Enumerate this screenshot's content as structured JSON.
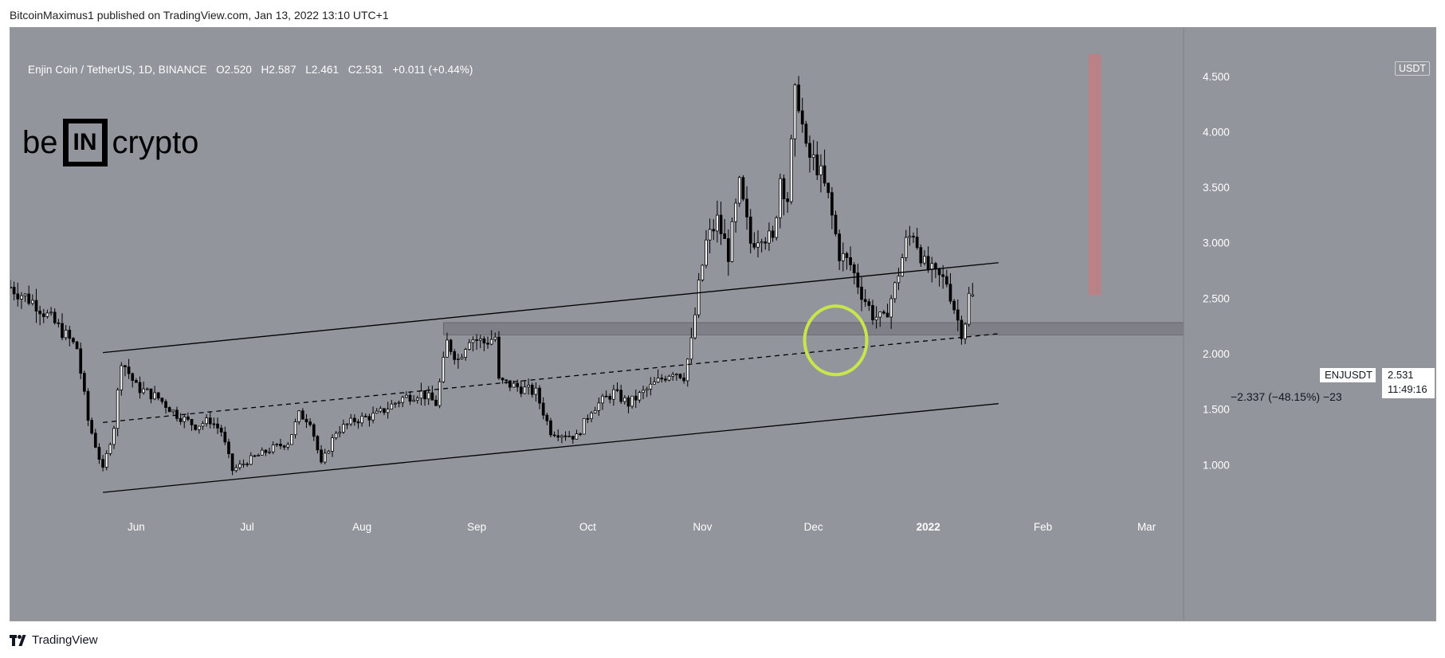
{
  "header": {
    "publish_line": "BitcoinMaximus1 published on TradingView.com, Jan 13, 2022 13:10 UTC+1"
  },
  "footer": {
    "brand": "TradingView"
  },
  "watermark": {
    "left": "be",
    "middle": "IN",
    "right": "crypto"
  },
  "legend": {
    "symbol": "Enjin Coin / TetherUS, 1D, BINANCE",
    "o_label": "O",
    "o_value": "2.520",
    "h_label": "H",
    "h_value": "2.587",
    "l_label": "L",
    "l_value": "2.461",
    "c_label": "C",
    "c_value": "2.531",
    "change": "+0.011 (+0.44%)"
  },
  "price_axis": {
    "currency": "USDT",
    "last_symbol": "ENJUSDT",
    "last_price": "2.531",
    "countdown": "11:49:16"
  },
  "measure": {
    "label": "−2.337 (−48.15%) −23"
  },
  "colors": {
    "plot_bg": "#93959d",
    "candle_up": "#ffffff",
    "candle_down": "#000000",
    "highlight_circle": "#c8e64b",
    "measure_bar": "#c77b80",
    "support_zone": "#6f7178"
  },
  "chart_data": {
    "type": "candlestick",
    "symbol": "ENJUSDT",
    "timeframe": "1D",
    "exchange": "BINANCE",
    "x_tick_labels": [
      "Jun",
      "Jul",
      "Aug",
      "Sep",
      "Oct",
      "Nov",
      "Dec",
      "2022",
      "Feb",
      "Mar"
    ],
    "y_tick_labels": [
      "1.000",
      "1.500",
      "2.000",
      "2.500",
      "3.000",
      "3.500",
      "4.000",
      "4.500"
    ],
    "y_ticks": [
      1.0,
      1.5,
      2.0,
      2.5,
      3.0,
      3.5,
      4.0,
      4.5
    ],
    "y_range": [
      0.6,
      4.85
    ],
    "x_range": [
      "2021-04-28",
      "2022-03-11"
    ],
    "grid": false,
    "anchors": [
      [
        "2021-04-28",
        2.6
      ],
      [
        "2021-05-05",
        2.45
      ],
      [
        "2021-05-12",
        2.2
      ],
      [
        "2021-05-16",
        2.05
      ],
      [
        "2021-05-19",
        1.4
      ],
      [
        "2021-05-23",
        0.95
      ],
      [
        "2021-05-26",
        1.35
      ],
      [
        "2021-05-28",
        1.95
      ],
      [
        "2021-06-01",
        1.7
      ],
      [
        "2021-06-07",
        1.6
      ],
      [
        "2021-06-12",
        1.45
      ],
      [
        "2021-06-17",
        1.35
      ],
      [
        "2021-06-21",
        1.4
      ],
      [
        "2021-06-24",
        1.3
      ],
      [
        "2021-06-27",
        0.95
      ],
      [
        "2021-07-02",
        1.05
      ],
      [
        "2021-07-08",
        1.15
      ],
      [
        "2021-07-12",
        1.2
      ],
      [
        "2021-07-15",
        1.45
      ],
      [
        "2021-07-18",
        1.4
      ],
      [
        "2021-07-21",
        1.0
      ],
      [
        "2021-07-25",
        1.3
      ],
      [
        "2021-07-30",
        1.4
      ],
      [
        "2021-08-05",
        1.45
      ],
      [
        "2021-08-12",
        1.6
      ],
      [
        "2021-08-17",
        1.65
      ],
      [
        "2021-08-21",
        1.55
      ],
      [
        "2021-08-24",
        2.1
      ],
      [
        "2021-08-27",
        1.95
      ],
      [
        "2021-08-30",
        2.15
      ],
      [
        "2021-09-03",
        2.1
      ],
      [
        "2021-09-06",
        2.15
      ],
      [
        "2021-09-07",
        1.75
      ],
      [
        "2021-09-12",
        1.7
      ],
      [
        "2021-09-17",
        1.65
      ],
      [
        "2021-09-21",
        1.3
      ],
      [
        "2021-09-28",
        1.25
      ],
      [
        "2021-10-02",
        1.5
      ],
      [
        "2021-10-08",
        1.65
      ],
      [
        "2021-10-12",
        1.55
      ],
      [
        "2021-10-16",
        1.65
      ],
      [
        "2021-10-20",
        1.75
      ],
      [
        "2021-10-24",
        1.85
      ],
      [
        "2021-10-27",
        1.8
      ],
      [
        "2021-10-29",
        2.1
      ],
      [
        "2021-10-31",
        2.6
      ],
      [
        "2021-11-02",
        3.0
      ],
      [
        "2021-11-05",
        3.2
      ],
      [
        "2021-11-08",
        2.9
      ],
      [
        "2021-11-11",
        3.5
      ],
      [
        "2021-11-14",
        3.0
      ],
      [
        "2021-11-17",
        3.1
      ],
      [
        "2021-11-20",
        3.0
      ],
      [
        "2021-11-22",
        3.6
      ],
      [
        "2021-11-24",
        3.4
      ],
      [
        "2021-11-26",
        4.3
      ],
      [
        "2021-11-27",
        4.3
      ],
      [
        "2021-11-29",
        3.8
      ],
      [
        "2021-12-02",
        3.7
      ],
      [
        "2021-12-05",
        3.4
      ],
      [
        "2021-12-08",
        2.9
      ],
      [
        "2021-12-11",
        2.8
      ],
      [
        "2021-12-14",
        2.55
      ],
      [
        "2021-12-17",
        2.35
      ],
      [
        "2021-12-20",
        2.3
      ],
      [
        "2021-12-23",
        2.6
      ],
      [
        "2021-12-26",
        3.0
      ],
      [
        "2021-12-28",
        3.1
      ],
      [
        "2021-12-31",
        2.8
      ],
      [
        "2022-01-03",
        2.7
      ],
      [
        "2022-01-06",
        2.65
      ],
      [
        "2022-01-09",
        2.3
      ],
      [
        "2022-01-10",
        2.2
      ],
      [
        "2022-01-11",
        2.3
      ],
      [
        "2022-01-12",
        2.52
      ],
      [
        "2022-01-13",
        2.531
      ]
    ],
    "lines": [
      {
        "style": "solid",
        "from": [
          "2021-05-23",
          2.01
        ],
        "to": [
          "2022-01-20",
          2.82
        ]
      },
      {
        "style": "dashed",
        "from": [
          "2021-05-23",
          1.38
        ],
        "to": [
          "2022-01-20",
          2.18
        ]
      },
      {
        "style": "solid",
        "from": [
          "2021-05-23",
          0.75
        ],
        "to": [
          "2022-01-20",
          1.55
        ]
      }
    ],
    "support_zone": {
      "from": "2021-08-23",
      "to": "2022-03-11",
      "low": 2.17,
      "high": 2.28
    },
    "highlight_circle": {
      "x": "2021-12-07",
      "y": 2.12
    },
    "measure_bar": {
      "x": "2022-02-15",
      "top": 4.7,
      "bottom": 2.53
    }
  }
}
